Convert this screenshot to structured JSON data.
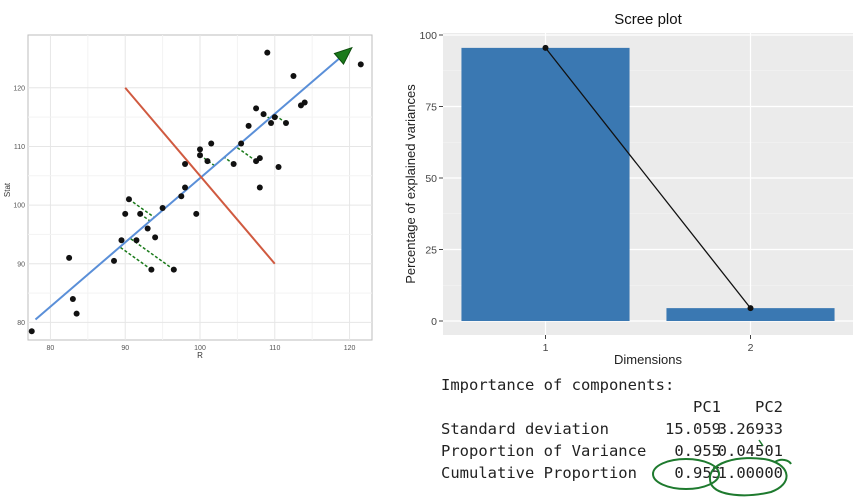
{
  "chart_data": [
    {
      "type": "scatter",
      "title": "",
      "xlabel": "R",
      "ylabel": "Stat",
      "xlim": [
        77,
        123
      ],
      "ylim": [
        77,
        129
      ],
      "xticks": [
        80,
        90,
        100,
        110,
        120
      ],
      "yticks": [
        80,
        90,
        100,
        110,
        120
      ],
      "grid": true,
      "points": [
        [
          77.5,
          78.5
        ],
        [
          82.5,
          91
        ],
        [
          83,
          84
        ],
        [
          83.5,
          81.5
        ],
        [
          88.5,
          90.5
        ],
        [
          89.5,
          94
        ],
        [
          90,
          98.5
        ],
        [
          90.5,
          101
        ],
        [
          91.5,
          94
        ],
        [
          92,
          98.5
        ],
        [
          93,
          96
        ],
        [
          93.5,
          89
        ],
        [
          94,
          94.5
        ],
        [
          95,
          99.5
        ],
        [
          96.5,
          89
        ],
        [
          97.5,
          101.5
        ],
        [
          98,
          103
        ],
        [
          98,
          107
        ],
        [
          99.5,
          98.5
        ],
        [
          100,
          108.5
        ],
        [
          100,
          109.5
        ],
        [
          101,
          107.5
        ],
        [
          101.5,
          110.5
        ],
        [
          104.5,
          107
        ],
        [
          105.5,
          110.5
        ],
        [
          106.5,
          113.5
        ],
        [
          107.5,
          116.5
        ],
        [
          107.5,
          107.5
        ],
        [
          108,
          103
        ],
        [
          108,
          108
        ],
        [
          108.5,
          115.5
        ],
        [
          109,
          126
        ],
        [
          109.5,
          114
        ],
        [
          110,
          115
        ],
        [
          110.5,
          106.5
        ],
        [
          111.5,
          114
        ],
        [
          112.5,
          122
        ],
        [
          113.5,
          117
        ],
        [
          114,
          117.5
        ],
        [
          121.5,
          124
        ]
      ],
      "pc1_line": [
        [
          78,
          80.5
        ],
        [
          120,
          126.5
        ]
      ],
      "pc2_line": [
        [
          90,
          120
        ],
        [
          110,
          90
        ]
      ],
      "arrow_color": "#1a7a1a",
      "pc1_color": "#5a8fd8",
      "pc2_color": "#d05a40",
      "projection_color": "#1a7a1a"
    },
    {
      "type": "bar",
      "title": "Scree plot",
      "xlabel": "Dimensions",
      "ylabel": "Percentage of explained variances",
      "categories": [
        "1",
        "2"
      ],
      "values": [
        95.5,
        4.5
      ],
      "ylim": [
        0,
        100
      ],
      "yticks": [
        0,
        25,
        50,
        75,
        100
      ],
      "bar_color": "#3a78b2",
      "background": "#ebebeb",
      "line_overlay": true
    }
  ],
  "importance": {
    "title": "Importance of components:",
    "columns": [
      "PC1",
      "PC2"
    ],
    "rows": [
      {
        "label": "Standard deviation",
        "values": [
          "15.059",
          "3.26933"
        ]
      },
      {
        "label": "Proportion of Variance",
        "values": [
          "0.955",
          "0.04501"
        ]
      },
      {
        "label": "Cumulative Proportion",
        "values": [
          "0.955",
          "1.00000"
        ]
      }
    ],
    "annotation_color": "#1e7a2e"
  }
}
